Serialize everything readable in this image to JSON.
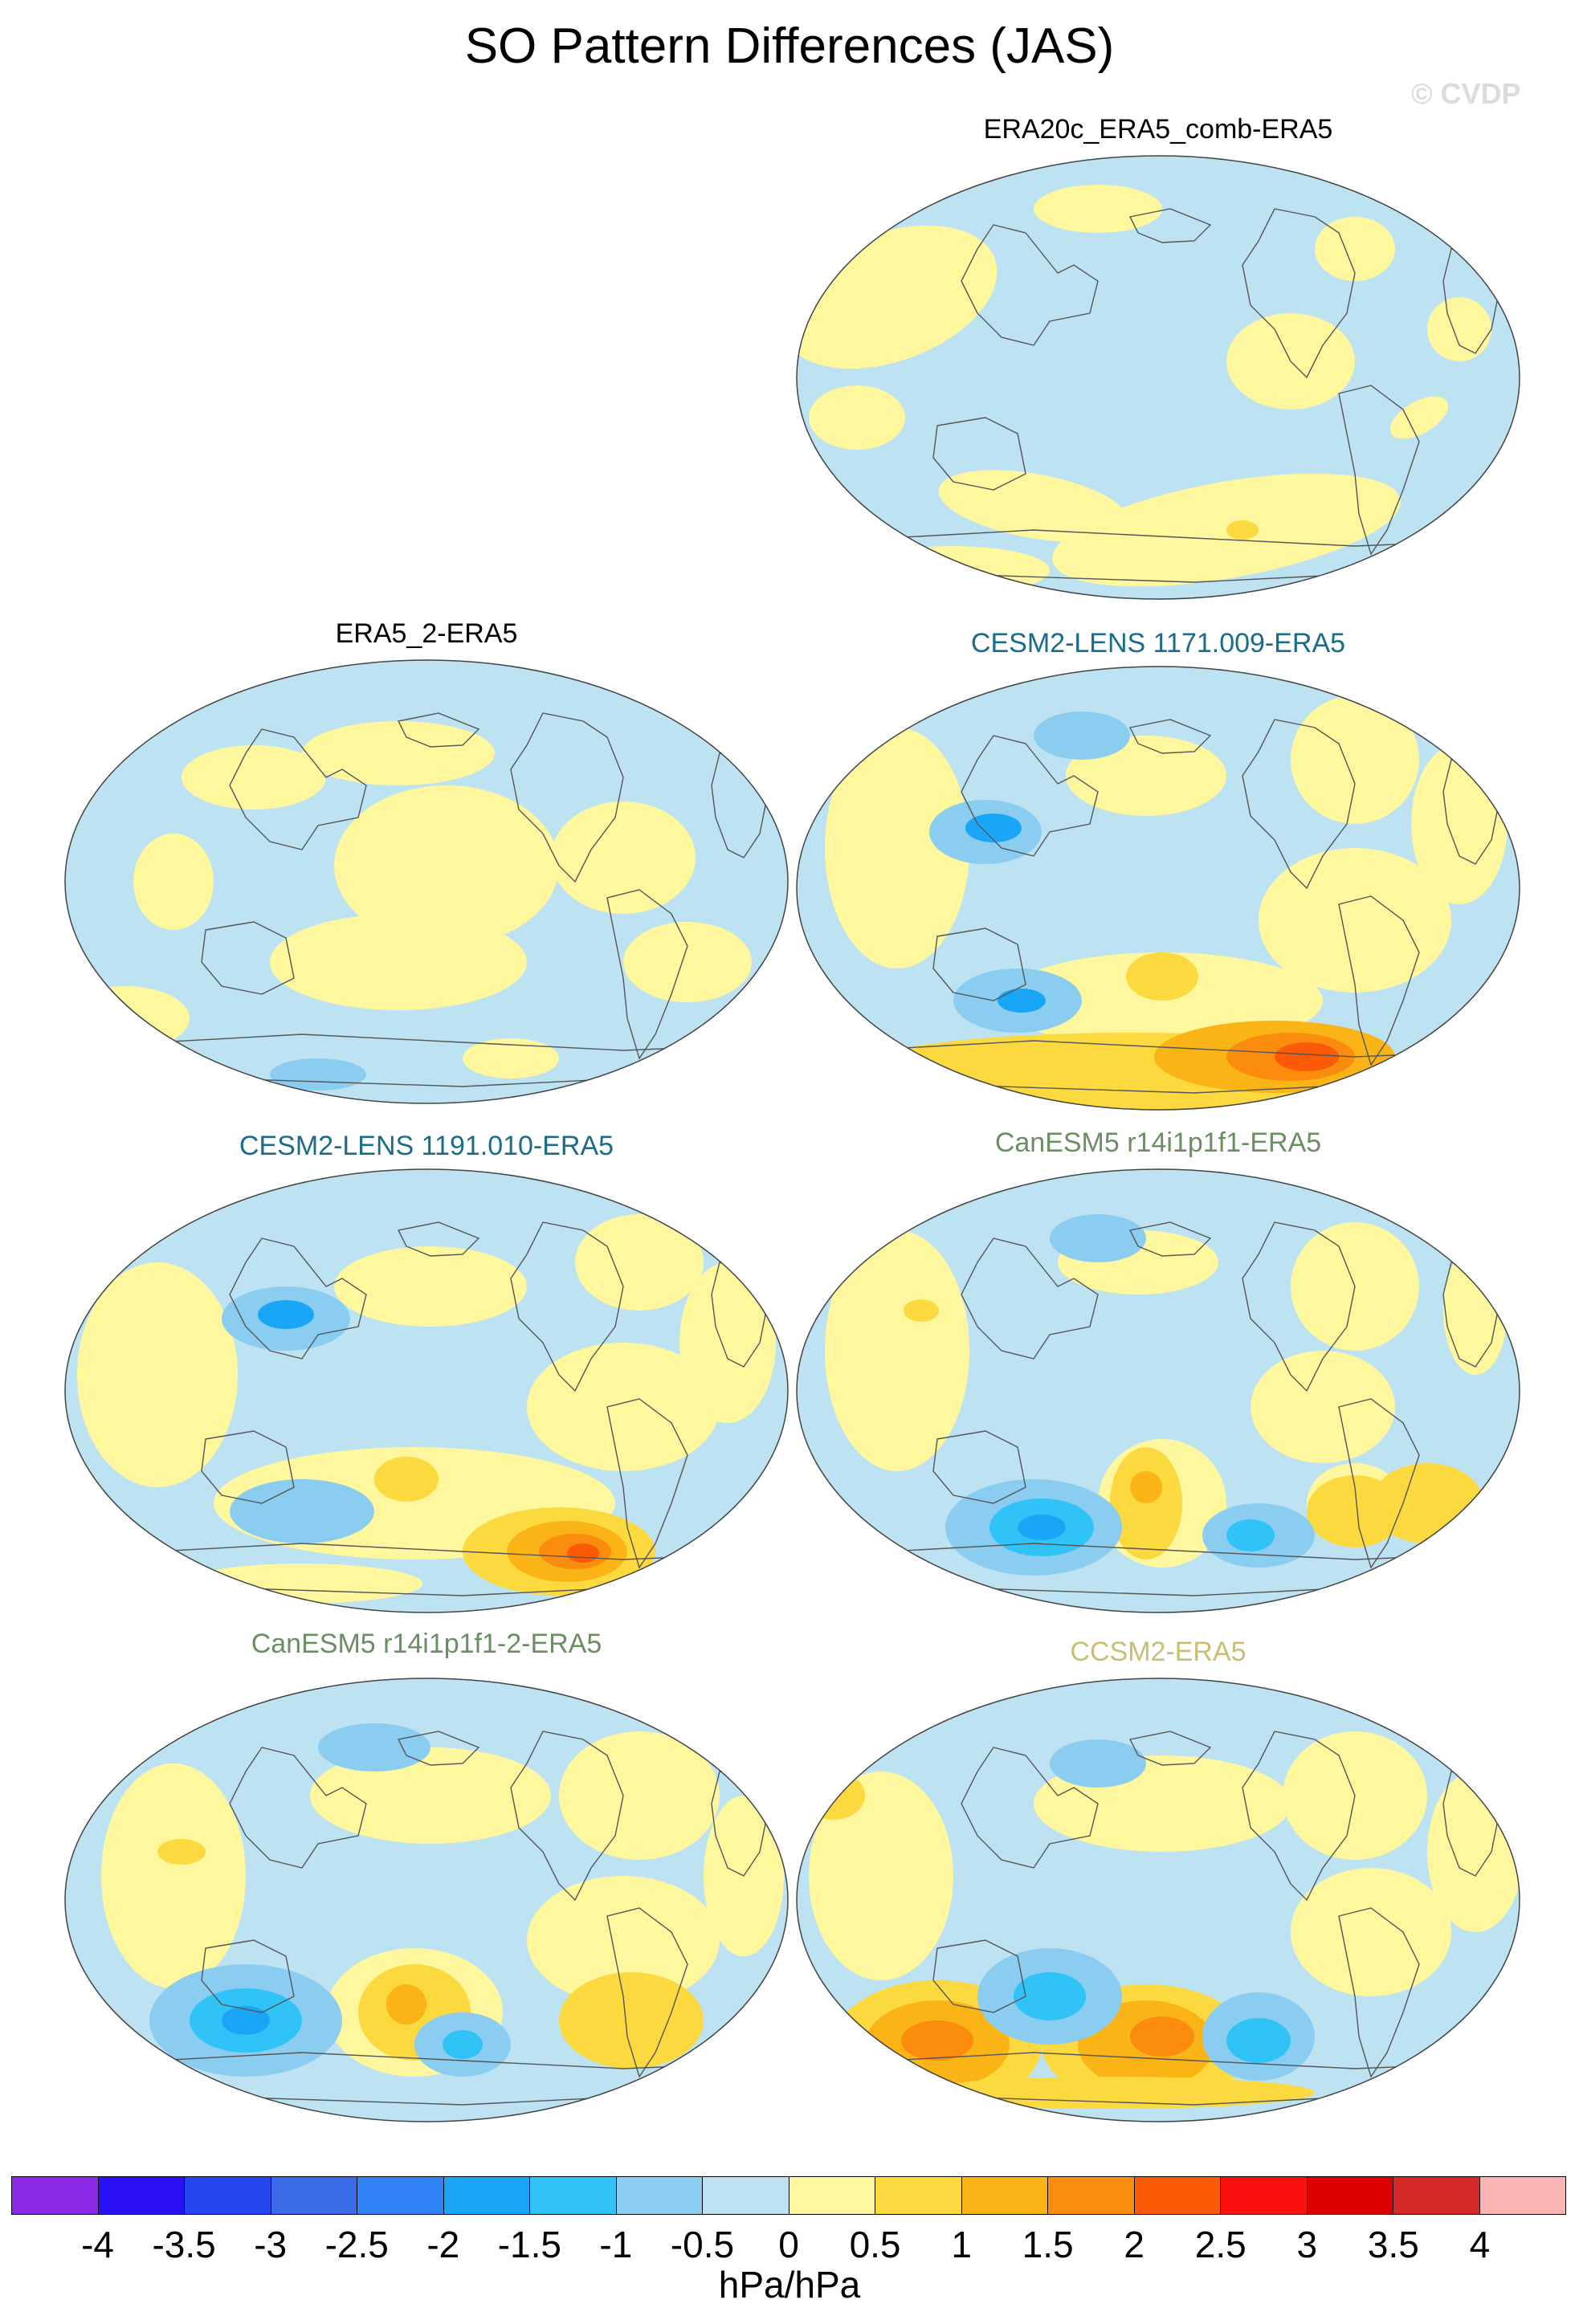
{
  "title": "SO Pattern Differences (JAS)",
  "watermark": "© CVDP",
  "panels": [
    {
      "id": "era20c",
      "title": "ERA20c_ERA5_comb-ERA5",
      "title_color": "#000000"
    },
    {
      "id": "era5_2",
      "title": "ERA5_2-ERA5",
      "title_color": "#000000"
    },
    {
      "id": "cesm2_1171",
      "title": "CESM2-LENS 1171.009-ERA5",
      "title_color": "#1a6c88"
    },
    {
      "id": "cesm2_1191",
      "title": "CESM2-LENS 1191.010-ERA5",
      "title_color": "#1a6c88"
    },
    {
      "id": "canesm5",
      "title": "CanESM5 r14i1p1f1-ERA5",
      "title_color": "#6b8f63"
    },
    {
      "id": "canesm5_2",
      "title": "CanESM5 r14i1p1f1-2-ERA5",
      "title_color": "#6b8f63"
    },
    {
      "id": "ccsm2",
      "title": "CCSM2-ERA5",
      "title_color": "#c9bf74"
    }
  ],
  "colorbar": {
    "colors": [
      "#8a2ae6",
      "#2a10f5",
      "#2346f0",
      "#3a6ae8",
      "#2f83f7",
      "#1aa6f7",
      "#2fc3f7",
      "#8bcdf0",
      "#bde3f2",
      "#fff79e",
      "#fcd93f",
      "#fbb415",
      "#fb8c0d",
      "#fb5a06",
      "#fb1010",
      "#dd0000",
      "#d52a2a",
      "#fbb4b4"
    ],
    "labels": [
      "-4",
      "-3.5",
      "-3",
      "-2.5",
      "-2",
      "-1.5",
      "-1",
      "-0.5",
      "0",
      "0.5",
      "1",
      "1.5",
      "2",
      "2.5",
      "3",
      "3.5",
      "4"
    ],
    "units": "hPa/hPa"
  }
}
